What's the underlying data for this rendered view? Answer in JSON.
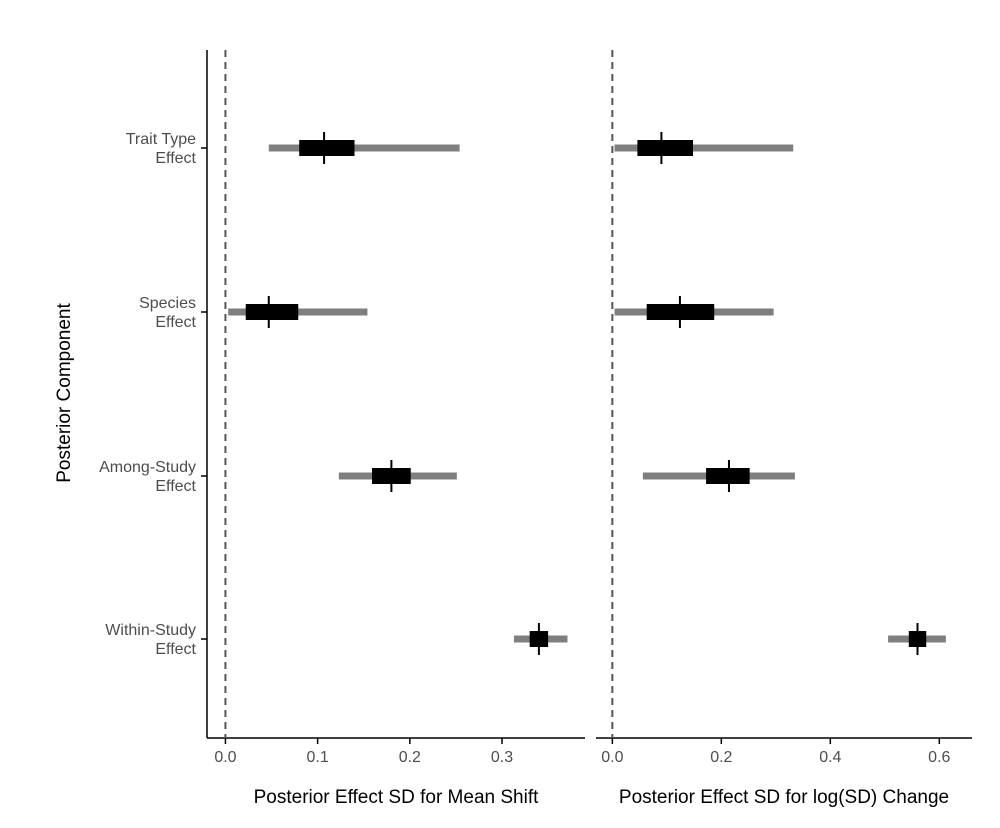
{
  "chart_data": {
    "type": "forest",
    "ylabel": "Posterior Component",
    "categories": [
      [
        "Trait Type",
        "Effect"
      ],
      [
        "Species",
        "Effect"
      ],
      [
        "Among-Study",
        "Effect"
      ],
      [
        "Within-Study",
        "Effect"
      ]
    ],
    "reference_line": 0,
    "grid": false,
    "colors": {
      "outer_interval": "#7f7f7f",
      "inner_interval": "#000000",
      "reference_line": "#555555",
      "axis": "#000000"
    },
    "panels": [
      {
        "xlabel": "Posterior Effect SD for Mean Shift",
        "xlim": [
          -0.02,
          0.39
        ],
        "xticks": [
          0.0,
          0.1,
          0.2,
          0.3
        ],
        "xtick_labels": [
          "0.0",
          "0.1",
          "0.2",
          "0.3"
        ],
        "estimates": [
          {
            "median": 0.107,
            "inner": [
              0.08,
              0.14
            ],
            "outer": [
              0.047,
              0.254
            ]
          },
          {
            "median": 0.047,
            "inner": [
              0.022,
              0.079
            ],
            "outer": [
              0.003,
              0.154
            ]
          },
          {
            "median": 0.18,
            "inner": [
              0.159,
              0.201
            ],
            "outer": [
              0.123,
              0.251
            ]
          },
          {
            "median": 0.34,
            "inner": [
              0.33,
              0.35
            ],
            "outer": [
              0.313,
              0.371
            ]
          }
        ]
      },
      {
        "xlabel": "Posterior Effect SD for log(SD) Change",
        "xlim": [
          -0.03,
          0.66
        ],
        "xticks": [
          0.0,
          0.2,
          0.4,
          0.6
        ],
        "xtick_labels": [
          "0.0",
          "0.2",
          "0.4",
          "0.6"
        ],
        "estimates": [
          {
            "median": 0.09,
            "inner": [
              0.046,
              0.148
            ],
            "outer": [
              0.004,
              0.332
            ]
          },
          {
            "median": 0.124,
            "inner": [
              0.063,
              0.187
            ],
            "outer": [
              0.004,
              0.296
            ]
          },
          {
            "median": 0.214,
            "inner": [
              0.172,
              0.252
            ],
            "outer": [
              0.056,
              0.335
            ]
          },
          {
            "median": 0.56,
            "inner": [
              0.544,
              0.576
            ],
            "outer": [
              0.506,
              0.612
            ]
          }
        ]
      }
    ]
  }
}
